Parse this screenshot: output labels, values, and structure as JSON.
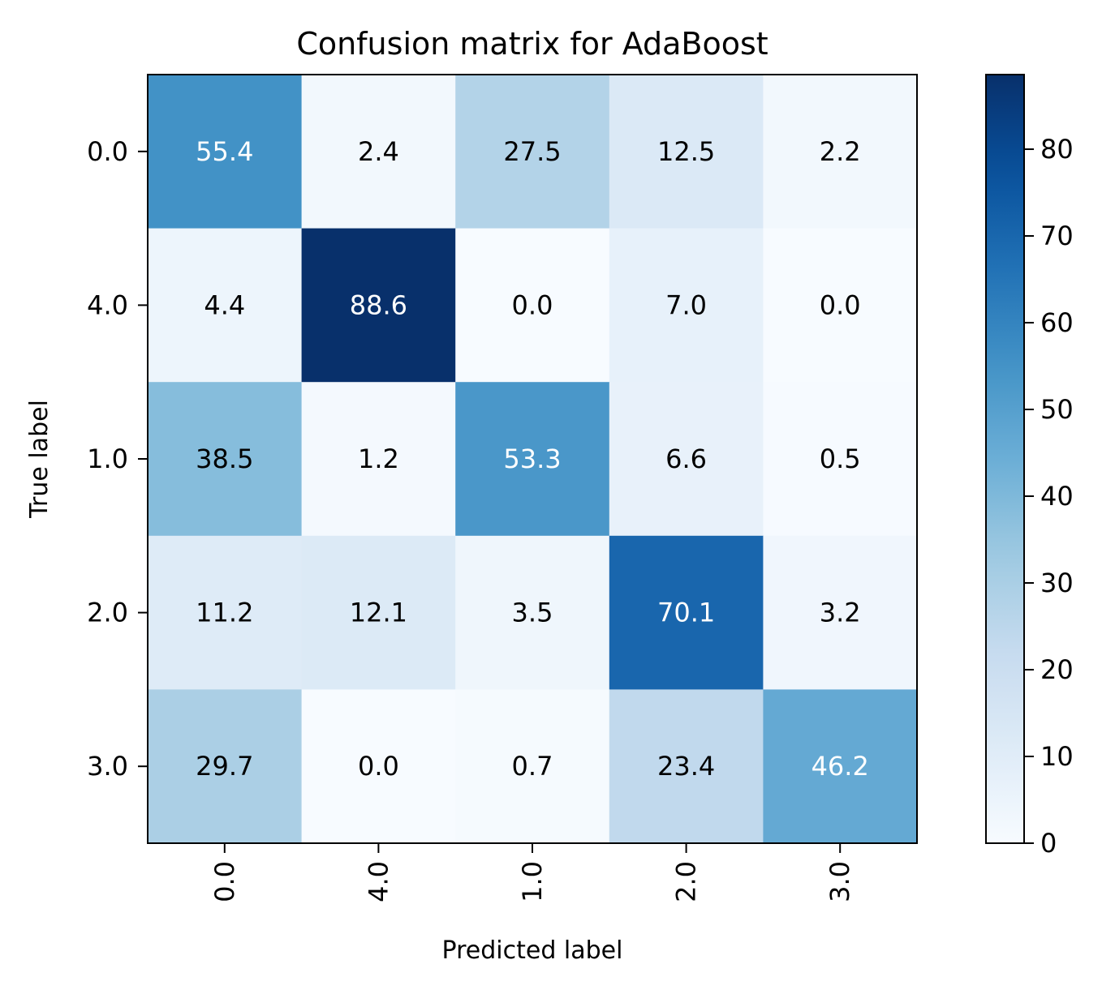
{
  "chart_data": {
    "type": "heatmap",
    "title": "Confusion matrix for AdaBoost",
    "xlabel": "Predicted label",
    "ylabel": "True label",
    "x_categories": [
      "0.0",
      "4.0",
      "1.0",
      "2.0",
      "3.0"
    ],
    "y_categories": [
      "0.0",
      "4.0",
      "1.0",
      "2.0",
      "3.0"
    ],
    "values": [
      [
        55.4,
        2.4,
        27.5,
        12.5,
        2.2
      ],
      [
        4.4,
        88.6,
        0.0,
        7.0,
        0.0
      ],
      [
        38.5,
        1.2,
        53.3,
        6.6,
        0.5
      ],
      [
        11.2,
        12.1,
        3.5,
        70.1,
        3.2
      ],
      [
        29.7,
        0.0,
        0.7,
        23.4,
        46.2
      ]
    ],
    "colormap": "Blues",
    "colorbar": {
      "min": 0,
      "max": 88.6,
      "ticks": [
        0,
        10,
        20,
        30,
        40,
        50,
        60,
        70,
        80
      ]
    },
    "x_tick_rotation_deg": 90,
    "text_color_dark": "#000000",
    "text_color_light": "#ffffff",
    "grid": false
  }
}
